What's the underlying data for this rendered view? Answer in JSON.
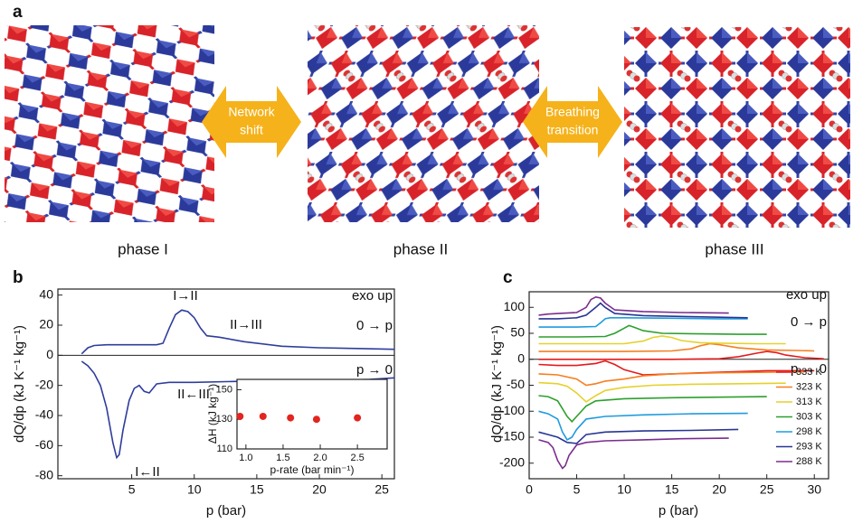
{
  "panel_labels": [
    "a",
    "b",
    "c"
  ],
  "phases": [
    "phase I",
    "phase II",
    "phase III"
  ],
  "arrows": [
    {
      "lines": [
        "Network",
        "shift"
      ]
    },
    {
      "lines": [
        "Breathing",
        "transition"
      ]
    }
  ],
  "chart_data": [
    {
      "type": "line",
      "xlabel": "p (bar)",
      "ylabel": "dQ/dp (kJ K⁻¹ kg⁻¹)",
      "xlim": [
        -0.9,
        26
      ],
      "ylim": [
        -82,
        44
      ],
      "xticks": [
        5,
        10,
        15,
        20,
        25
      ],
      "yticks": [
        -80,
        -60,
        -40,
        -20,
        0,
        20,
        40
      ],
      "annotations": [
        "exo up",
        "0 → p",
        "p → 0",
        "I→II",
        "II→III",
        "II←III",
        "I←II"
      ],
      "series": [
        {
          "color": "#2f3d9c",
          "adsorption": {
            "x": [
              1,
              1.5,
              2,
              3,
              5,
              7,
              7.5,
              8,
              8.5,
              9,
              9.5,
              10,
              10.5,
              11,
              12,
              14,
              17,
              20,
              23,
              26
            ],
            "values": [
              1,
              5,
              6.5,
              7,
              7,
              7,
              8,
              18,
              27,
              30,
              29,
              25,
              18,
              13,
              12,
              9,
              6,
              5,
              4.5,
              4
            ]
          },
          "desorption": {
            "x": [
              1,
              1.5,
              2,
              2.5,
              3,
              3.5,
              3.8,
              4,
              4.3,
              4.8,
              5.2,
              5.6,
              6,
              6.4,
              7,
              8,
              10,
              15,
              20,
              24,
              26
            ],
            "values": [
              -4,
              -7,
              -12,
              -20,
              -35,
              -58,
              -68,
              -66,
              -50,
              -30,
              -22,
              -20,
              -24,
              -25,
              -19,
              -18,
              -18,
              -17,
              -17,
              -16,
              -15
            ]
          }
        }
      ]
    },
    {
      "type": "scatter",
      "xlabel": "p-rate (bar min⁻¹)",
      "ylabel": "ΔH (kJ kg⁻¹)",
      "xlim": [
        0.88,
        2.9
      ],
      "ylim": [
        110,
        157
      ],
      "xticks": [
        {
          "value": 1,
          "label": "1.0"
        },
        1.5,
        {
          "value": 2,
          "label": "2.0"
        },
        2.5
      ],
      "yticks": [
        110,
        130,
        150
      ],
      "color": "#e3241f",
      "x": [
        0.92,
        1.23,
        1.6,
        1.95,
        2.5
      ],
      "values": [
        132,
        132,
        131,
        130,
        131
      ]
    },
    {
      "type": "line",
      "xlabel": "p (bar)",
      "ylabel": "dQ/dp (kJ K⁻¹ kg⁻¹)",
      "xlim": [
        0,
        31.5
      ],
      "ylim": [
        -230,
        130
      ],
      "xticks": [
        0,
        5,
        10,
        15,
        20,
        25,
        30
      ],
      "yticks": [
        -200,
        -150,
        -100,
        -50,
        0,
        50,
        100
      ],
      "annotations": [
        "exo up",
        "0 → p",
        "p → 0"
      ],
      "legend": "lower right",
      "series": [
        {
          "name": "333 K",
          "color": "#e41a1c",
          "adsorption": {
            "x": [
              1,
              5,
              10,
              15,
              20,
              22,
              24,
              25,
              26,
              27,
              29,
              31
            ],
            "values": [
              0,
              0,
              0,
              0,
              1,
              5,
              12,
              15,
              13,
              8,
              3,
              1
            ]
          },
          "desorption": {
            "x": [
              1,
              3,
              5,
              7,
              8,
              9,
              10,
              12,
              15,
              20,
              25,
              30
            ],
            "values": [
              -10,
              -12,
              -12,
              -8,
              -3,
              -10,
              -20,
              -30,
              -28,
              -25,
              -22,
              -22
            ]
          }
        },
        {
          "name": "323 K",
          "color": "#f57e20",
          "adsorption": {
            "x": [
              1,
              5,
              10,
              15,
              17,
              18,
              19,
              20,
              22,
              25,
              28,
              30
            ],
            "values": [
              15,
              15,
              15,
              16,
              20,
              26,
              30,
              28,
              22,
              18,
              17,
              16
            ]
          },
          "desorption": {
            "x": [
              1,
              3,
              5,
              6,
              7,
              8,
              10,
              12,
              15,
              20,
              25,
              29
            ],
            "values": [
              -28,
              -30,
              -38,
              -50,
              -47,
              -42,
              -38,
              -32,
              -28,
              -26,
              -25,
              -24
            ]
          }
        },
        {
          "name": "313 K",
          "color": "#e5d12c",
          "adsorption": {
            "x": [
              1,
              5,
              10,
              12,
              13,
              14,
              15,
              16,
              18,
              20,
              24,
              27
            ],
            "values": [
              30,
              30,
              30,
              35,
              42,
              45,
              42,
              36,
              32,
              31,
              30,
              30
            ]
          },
          "desorption": {
            "x": [
              1,
              3,
              4,
              5,
              6,
              7,
              8,
              10,
              13,
              17,
              22,
              27
            ],
            "values": [
              -45,
              -47,
              -52,
              -65,
              -82,
              -70,
              -60,
              -54,
              -50,
              -48,
              -47,
              -46
            ]
          }
        },
        {
          "name": "303 K",
          "color": "#2ca02c",
          "adsorption": {
            "x": [
              1,
              5,
              8,
              9,
              10,
              10.5,
              11,
              12,
              14,
              18,
              22,
              25
            ],
            "values": [
              43,
              43,
              44,
              50,
              60,
              65,
              62,
              55,
              50,
              49,
              48,
              48
            ]
          },
          "desorption": {
            "x": [
              1,
              2,
              3,
              3.5,
              4,
              4.5,
              5,
              6,
              7,
              10,
              15,
              20,
              25
            ],
            "values": [
              -70,
              -72,
              -80,
              -95,
              -110,
              -120,
              -110,
              -90,
              -80,
              -76,
              -74,
              -73,
              -72
            ]
          }
        },
        {
          "name": "298 K",
          "color": "#1f9bde",
          "adsorption": {
            "x": [
              1,
              3,
              5,
              7,
              7.5,
              8,
              8.5,
              10,
              15,
              20,
              23
            ],
            "values": [
              62,
              62,
              62,
              63,
              70,
              78,
              80,
              80,
              79,
              78,
              78
            ]
          },
          "desorption": {
            "x": [
              1,
              2,
              3,
              3.5,
              4,
              4.5,
              5,
              6,
              8,
              12,
              17,
              23
            ],
            "values": [
              -100,
              -105,
              -115,
              -140,
              -155,
              -150,
              -135,
              -115,
              -110,
              -107,
              -105,
              -104
            ]
          }
        },
        {
          "name": "293 K",
          "color": "#283593",
          "adsorption": {
            "x": [
              1,
              3,
              5,
              6,
              7,
              7.5,
              8,
              9,
              12,
              17,
              23
            ],
            "values": [
              78,
              78,
              80,
              85,
              100,
              108,
              100,
              88,
              84,
              82,
              80
            ]
          },
          "desorption": {
            "x": [
              1,
              2,
              3,
              4,
              5,
              6,
              8,
              12,
              17,
              22
            ],
            "values": [
              -140,
              -145,
              -150,
              -160,
              -162,
              -145,
              -140,
              -138,
              -137,
              -135
            ]
          }
        },
        {
          "name": "288 K",
          "color": "#7b2d8e",
          "adsorption": {
            "x": [
              1,
              2,
              3,
              5,
              6,
              6.5,
              7,
              7.5,
              8,
              9,
              12,
              16,
              21
            ],
            "values": [
              85,
              87,
              88,
              90,
              100,
              115,
              120,
              118,
              108,
              95,
              92,
              90,
              89
            ]
          },
          "desorption": {
            "x": [
              1,
              2,
              2.5,
              3,
              3.5,
              3.8,
              4.2,
              5,
              6,
              8,
              12,
              16,
              21
            ],
            "values": [
              -155,
              -160,
              -170,
              -195,
              -210,
              -205,
              -185,
              -165,
              -160,
              -157,
              -155,
              -153,
              -152
            ]
          }
        }
      ]
    }
  ]
}
